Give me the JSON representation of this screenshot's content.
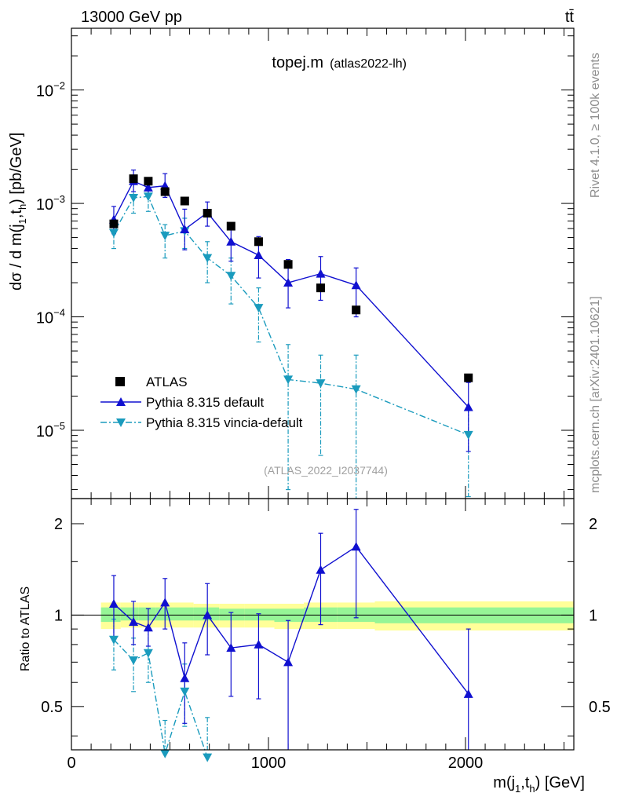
{
  "header": {
    "energy_label": "13000 GeV pp",
    "process_label": "tt̄"
  },
  "plot": {
    "title_main": "topej.m",
    "title_sub": "(atlas2022-lh)",
    "watermark": "(ATLAS_2022_I2037744)",
    "side_left_text": "mcplots.cern.ch [arXiv:2401.10621]",
    "side_right_text": "Rivet 4.1.0, ≥ 100k events"
  },
  "axes": {
    "ylabel_main_prefix": "dσ / d m(j",
    "ylabel_main_sub1": "1",
    "ylabel_main_mid": ",t",
    "ylabel_main_sub2": "h",
    "ylabel_main_suffix": ") [pb/GeV]",
    "ylabel_ratio": "Ratio to ATLAS",
    "xlabel_prefix": "m(j",
    "xlabel_sub1": "1",
    "xlabel_mid": ",t",
    "xlabel_sub2": "h",
    "xlabel_suffix": ") [GeV]",
    "x_tick_labels": [
      "0",
      "1000",
      "2000"
    ],
    "y_main_tick_labels": [
      {
        "base": "10",
        "exp": "−2"
      },
      {
        "base": "10",
        "exp": "−3"
      },
      {
        "base": "10",
        "exp": "−4"
      },
      {
        "base": "10",
        "exp": "−5"
      }
    ],
    "y_ratio_tick_labels": [
      "0.5",
      "1",
      "2"
    ]
  },
  "legend": {
    "atlas": "ATLAS",
    "pythia_default": "Pythia 8.315 default",
    "pythia_vincia": "Pythia 8.315 vincia-default"
  },
  "colors": {
    "atlas": "#000000",
    "pythia_default": "#1010d0",
    "pythia_vincia": "#1a9bbd",
    "band_inner": "#96f596",
    "band_outer": "#ffff99"
  },
  "chart_data": {
    "type": "scatter",
    "x_range": [
      0,
      2550
    ],
    "main": {
      "yscale": "log",
      "ylim": [
        2.5e-06,
        0.035
      ],
      "series": [
        {
          "name": "ATLAS",
          "x": [
            215,
            315,
            390,
            475,
            575,
            690,
            810,
            950,
            1100,
            1265,
            1445,
            2015
          ],
          "y": [
            0.00066,
            0.00165,
            0.00157,
            0.00127,
            0.00105,
            0.00082,
            0.00063,
            0.00046,
            0.00029,
            0.00018,
            0.000115,
            2.9e-05
          ]
        },
        {
          "name": "Pythia 8.315 default",
          "x": [
            215,
            315,
            390,
            475,
            575,
            690,
            810,
            950,
            1100,
            1265,
            1445,
            2015
          ],
          "y": [
            0.00072,
            0.00157,
            0.00138,
            0.00143,
            0.00059,
            0.00083,
            0.00046,
            0.00035,
            0.0002,
            0.00024,
            0.00019,
            1.6e-05
          ],
          "err_low": [
            0.00018,
            0.0003,
            0.0002,
            0.0003,
            0.0002,
            0.0002,
            0.00015,
            0.00013,
            8e-05,
            0.0001,
            9e-05,
            9.5e-06
          ],
          "err_high": [
            0.00022,
            0.0004,
            0.0003,
            0.0004,
            0.0003,
            0.0002,
            0.00019,
            0.00016,
            0.00012,
            0.0001,
            8e-05,
            1.04e-05
          ]
        },
        {
          "name": "Pythia 8.315 vincia-default",
          "x": [
            215,
            315,
            390,
            475,
            575,
            690,
            810,
            950,
            1100,
            1265,
            1445,
            2015
          ],
          "y": [
            0.00055,
            0.00112,
            0.00115,
            0.00052,
            0.00057,
            0.00033,
            0.00023,
            0.00012,
            2.8e-05,
            2.6e-05,
            2.3e-05,
            9.1e-06
          ],
          "err_low": [
            0.00015,
            0.0003,
            0.0003,
            0.00019,
            0.00017,
            0.00013,
            0.0001,
            6e-05,
            2.5e-05,
            2e-05,
            2.1e-05,
            6.5e-06
          ],
          "err_high": [
            0.00015,
            0.0004,
            0.0003,
            0.00013,
            0.00017,
            0.00013,
            0.0001,
            6e-05,
            2.9e-05,
            2e-05,
            2.3e-05,
            6.6e-06
          ]
        }
      ]
    },
    "ratio": {
      "yscale": "log",
      "ylim": [
        0.36,
        2.42
      ],
      "reference": 1,
      "band_edges": [
        150,
        250,
        340,
        430,
        520,
        620,
        750,
        880,
        1030,
        1180,
        1350,
        1540,
        2550
      ],
      "band_inner": [
        [
          0.95,
          1.06
        ],
        [
          0.96,
          1.06
        ],
        [
          0.96,
          1.06
        ],
        [
          0.96,
          1.06
        ],
        [
          0.96,
          1.06
        ],
        [
          0.96,
          1.06
        ],
        [
          0.96,
          1.05
        ],
        [
          0.96,
          1.05
        ],
        [
          0.95,
          1.05
        ],
        [
          0.95,
          1.06
        ],
        [
          0.95,
          1.06
        ],
        [
          0.94,
          1.06
        ]
      ],
      "band_outer": [
        [
          0.9,
          1.1
        ],
        [
          0.91,
          1.1
        ],
        [
          0.91,
          1.1
        ],
        [
          0.91,
          1.1
        ],
        [
          0.91,
          1.1
        ],
        [
          0.91,
          1.09
        ],
        [
          0.91,
          1.09
        ],
        [
          0.91,
          1.09
        ],
        [
          0.9,
          1.09
        ],
        [
          0.9,
          1.1
        ],
        [
          0.9,
          1.1
        ],
        [
          0.89,
          1.11
        ]
      ],
      "series": [
        {
          "name": "Pythia 8.315 default",
          "x": [
            215,
            315,
            390,
            475,
            575,
            690,
            810,
            950,
            1100,
            1265,
            1445,
            2015
          ],
          "y": [
            1.09,
            0.95,
            0.91,
            1.1,
            0.62,
            1.0,
            0.78,
            0.8,
            0.7,
            1.41,
            1.68,
            0.55
          ],
          "err_low": [
            0.25,
            0.15,
            0.12,
            0.2,
            0.18,
            0.26,
            0.24,
            0.27,
            0.4,
            0.48,
            0.7,
            0.25
          ],
          "err_high": [
            0.26,
            0.16,
            0.14,
            0.22,
            0.19,
            0.27,
            0.24,
            0.21,
            0.26,
            0.45,
            0.55,
            0.35
          ]
        },
        {
          "name": "Pythia 8.315 vincia-default",
          "x": [
            215,
            315,
            390,
            475,
            575,
            690
          ],
          "y": [
            0.83,
            0.71,
            0.75,
            0.35,
            0.56,
            0.34
          ],
          "err_low": [
            0.17,
            0.15,
            0.15,
            0.12,
            0.13,
            0.12
          ],
          "err_high": [
            0.14,
            0.13,
            0.16,
            0.1,
            0.13,
            0.12
          ]
        }
      ]
    }
  }
}
